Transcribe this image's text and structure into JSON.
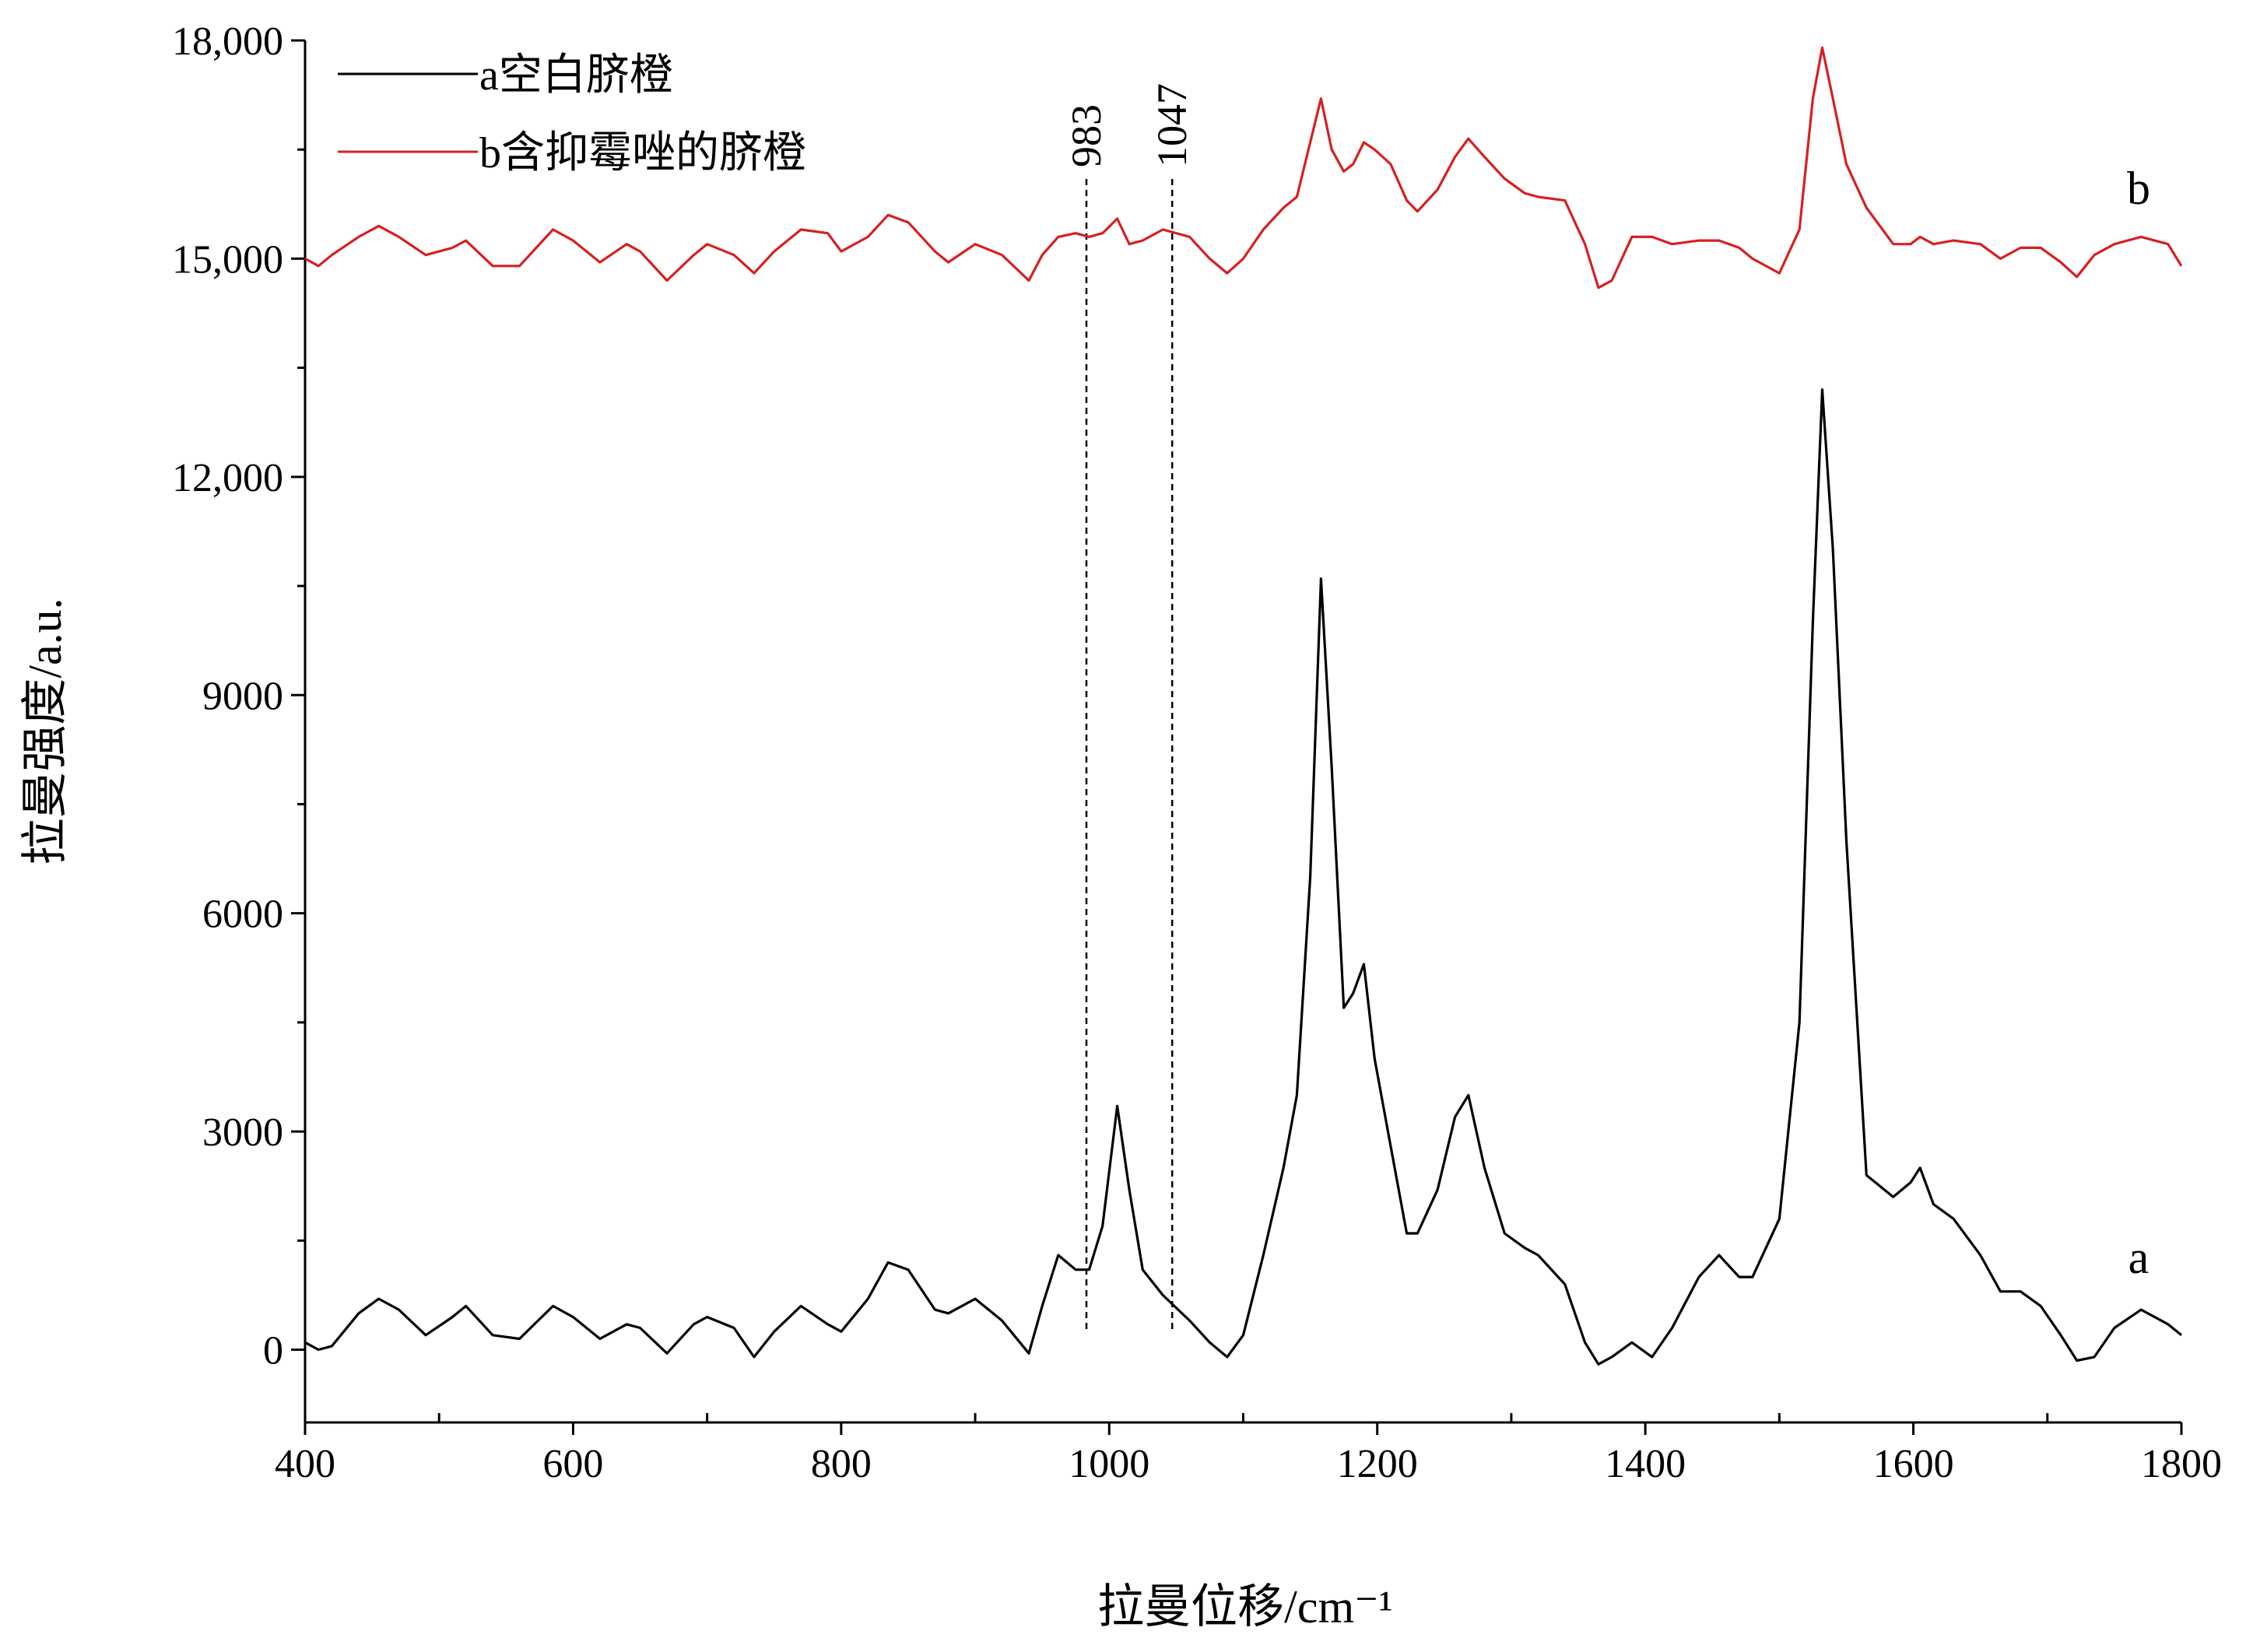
{
  "chart_data": {
    "type": "line",
    "x_label": "拉曼位移/cm⁻¹",
    "y_label": "拉曼强度/a.u.",
    "legend": "upper left",
    "xlim": [
      400,
      1800
    ],
    "xticks": [
      400,
      600,
      800,
      1000,
      1200,
      1400,
      1600,
      1800
    ],
    "ylim": [
      -1000,
      18000
    ],
    "yticks": [
      0,
      3000,
      6000,
      9000,
      {
        "value": 12000,
        "label": "12,000"
      },
      {
        "value": 15000,
        "label": "15,000"
      },
      {
        "value": 18000,
        "label": "18,000"
      }
    ],
    "x": [
      400,
      410,
      420,
      440,
      455,
      470,
      490,
      510,
      520,
      540,
      560,
      585,
      600,
      620,
      640,
      650,
      670,
      690,
      700,
      720,
      735,
      750,
      770,
      790,
      800,
      820,
      835,
      850,
      870,
      880,
      900,
      920,
      940,
      950,
      962,
      975,
      985,
      995,
      1006,
      1015,
      1025,
      1040,
      1060,
      1075,
      1088,
      1100,
      1115,
      1130,
      1140,
      1150,
      1158,
      1166,
      1175,
      1182,
      1190,
      1198,
      1210,
      1222,
      1230,
      1245,
      1258,
      1268,
      1280,
      1295,
      1310,
      1320,
      1340,
      1355,
      1365,
      1375,
      1390,
      1405,
      1420,
      1440,
      1455,
      1470,
      1480,
      1500,
      1515,
      1525,
      1532,
      1540,
      1550,
      1565,
      1585,
      1598,
      1605,
      1615,
      1630,
      1650,
      1665,
      1680,
      1695,
      1710,
      1722,
      1735,
      1750,
      1770,
      1790,
      1800
    ],
    "series": [
      {
        "name": "a空白脐橙",
        "tag": "a",
        "color": "#000000",
        "values": [
          100,
          0,
          50,
          500,
          700,
          550,
          200,
          450,
          600,
          200,
          150,
          600,
          450,
          150,
          350,
          300,
          -50,
          350,
          450,
          300,
          -100,
          250,
          600,
          350,
          250,
          700,
          1200,
          1100,
          550,
          500,
          700,
          400,
          -50,
          600,
          1300,
          1100,
          1100,
          1700,
          3350,
          2200,
          1100,
          750,
          400,
          100,
          -100,
          200,
          1300,
          2500,
          3500,
          6500,
          10600,
          8000,
          4700,
          4900,
          5300,
          4000,
          2800,
          1600,
          1600,
          2200,
          3200,
          3500,
          2500,
          1600,
          1400,
          1300,
          900,
          100,
          -200,
          -100,
          100,
          -100,
          300,
          1000,
          1300,
          1000,
          1000,
          1800,
          4500,
          10000,
          13200,
          11000,
          7000,
          2400,
          2100,
          2300,
          2500,
          2000,
          1800,
          1300,
          800,
          800,
          600,
          200,
          -150,
          -100,
          300,
          550,
          350,
          200
        ]
      },
      {
        "name": "b含抑霉唑的脐橙",
        "tag": "b",
        "color": "#d62020",
        "values": [
          15000,
          14900,
          15050,
          15300,
          15450,
          15300,
          15050,
          15150,
          15250,
          14900,
          14900,
          15400,
          15250,
          14950,
          15200,
          15100,
          14700,
          15050,
          15200,
          15050,
          14800,
          15100,
          15400,
          15350,
          15100,
          15300,
          15600,
          15500,
          15100,
          14950,
          15200,
          15050,
          14700,
          15050,
          15300,
          15350,
          15300,
          15350,
          15550,
          15200,
          15250,
          15400,
          15300,
          15000,
          14800,
          15000,
          15400,
          15700,
          15850,
          16600,
          17200,
          16500,
          16200,
          16300,
          16600,
          16500,
          16300,
          15800,
          15650,
          15950,
          16400,
          16650,
          16400,
          16100,
          15900,
          15850,
          15800,
          15200,
          14600,
          14700,
          15300,
          15300,
          15200,
          15250,
          15250,
          15150,
          15000,
          14800,
          15400,
          17200,
          17900,
          17200,
          16300,
          15700,
          15200,
          15200,
          15300,
          15200,
          15250,
          15200,
          15000,
          15150,
          15150,
          14950,
          14750,
          15050,
          15200,
          15300,
          15200,
          14900
        ]
      }
    ],
    "annotations": [
      {
        "text": "983",
        "x": 983
      },
      {
        "text": "1047",
        "x": 1047
      }
    ]
  }
}
